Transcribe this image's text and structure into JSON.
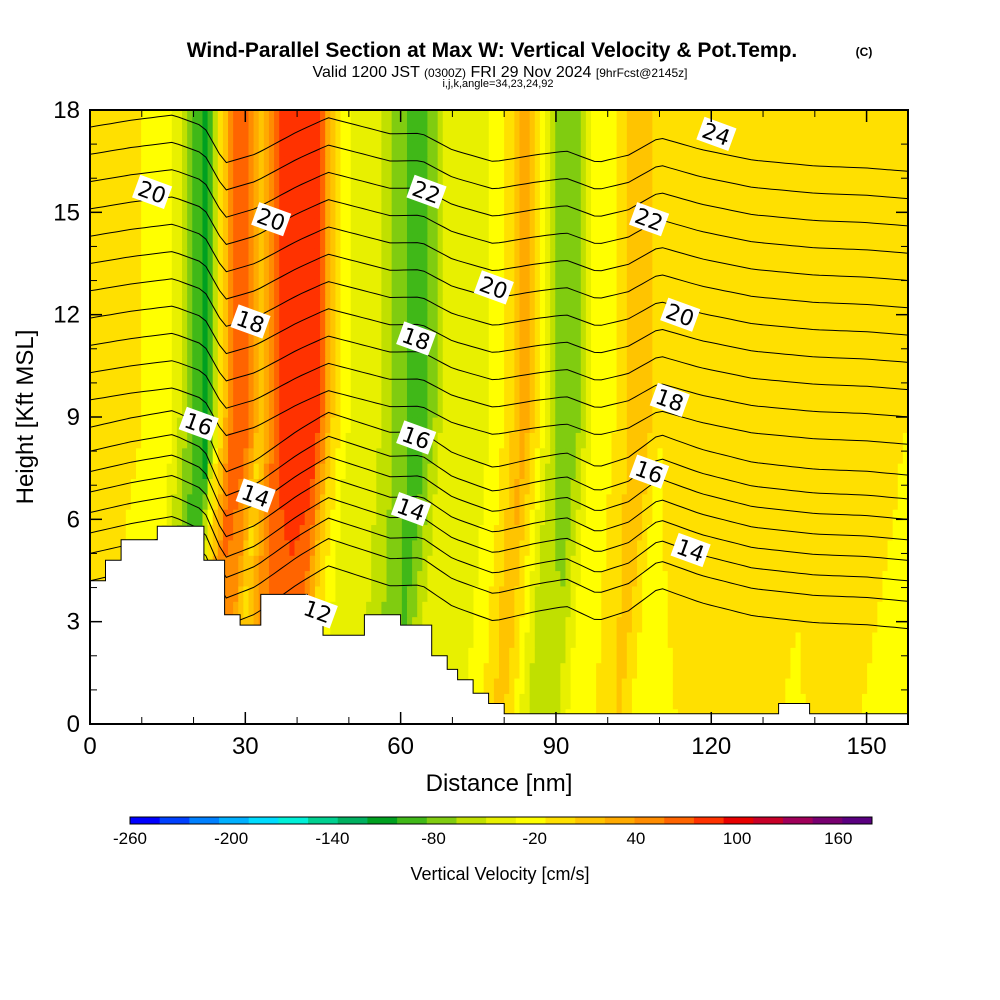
{
  "header": {
    "title": "Wind-Parallel Section at Max W: Vertical Velocity & Pot.Temp.",
    "copyright": "(C)",
    "valid_prefix": "Valid 1200 JST",
    "valid_utc": "(0300Z)",
    "valid_date": "FRI 29 Nov 2024",
    "forecast": "[9hrFcst@2145z]",
    "indices": "i,j,k,angle=34,23,24,92"
  },
  "chart_data": {
    "type": "heatmap",
    "xlabel": "Distance [nm]",
    "ylabel": "Height [Kft MSL]",
    "xlim": [
      0,
      158
    ],
    "ylim": [
      0,
      18
    ],
    "x_ticks": [
      0,
      30,
      60,
      90,
      120,
      150
    ],
    "y_ticks": [
      0,
      3,
      6,
      9,
      12,
      15,
      18
    ],
    "grid": false,
    "colorbar": {
      "label": "Vertical Velocity [cm/s]",
      "min": -260,
      "max": 180,
      "step": 20,
      "tick_values": [
        -260,
        -200,
        -140,
        -80,
        -20,
        40,
        100,
        160
      ],
      "tick_labels": [
        "-260",
        "-200",
        "-140",
        "-80",
        "-20",
        "40",
        "100",
        "160"
      ],
      "colors": [
        "#0000ff",
        "#0040ff",
        "#0080ff",
        "#00b0ff",
        "#00dcff",
        "#00f0d8",
        "#00d090",
        "#00b060",
        "#00a020",
        "#40b818",
        "#80cc10",
        "#c0e000",
        "#e8f000",
        "#ffff00",
        "#ffe000",
        "#ffc400",
        "#ffaa00",
        "#ff8c00",
        "#ff6400",
        "#ff3200",
        "#e80000",
        "#c80028",
        "#a0005a",
        "#780070",
        "#5a0080"
      ]
    },
    "velocity_profile": {
      "x": [
        0,
        5,
        10,
        16,
        20,
        23,
        25,
        28,
        31,
        33,
        36,
        38,
        41,
        44,
        47,
        50,
        55,
        60,
        64,
        68,
        72,
        76,
        80,
        84,
        87,
        90,
        94,
        97,
        100,
        104,
        107,
        110,
        115,
        120,
        125,
        130,
        135,
        140,
        145,
        150,
        155,
        158
      ],
      "w": [
        30,
        30,
        20,
        0,
        -60,
        -90,
        20,
        120,
        100,
        40,
        110,
        130,
        140,
        130,
        40,
        0,
        -10,
        -50,
        -80,
        -20,
        0,
        -10,
        20,
        70,
        20,
        -40,
        -50,
        0,
        10,
        40,
        60,
        20,
        25,
        30,
        40,
        30,
        35,
        25,
        30,
        40,
        25,
        20
      ]
    },
    "theta_contours": {
      "units": "C",
      "levels": [
        {
          "base": 4.2,
          "label": null
        },
        {
          "base": 5.0,
          "label": null
        },
        {
          "base": 5.6,
          "label": "12"
        },
        {
          "base": 6.2,
          "label": null
        },
        {
          "base": 6.8,
          "label": "14"
        },
        {
          "base": 7.4,
          "label": null
        },
        {
          "base": 8.0,
          "label": "16"
        },
        {
          "base": 8.7,
          "label": null
        },
        {
          "base": 9.5,
          "label": "18"
        },
        {
          "base": 10.3,
          "label": null
        },
        {
          "base": 11.1,
          "label": "20"
        },
        {
          "base": 11.9,
          "label": null
        },
        {
          "base": 12.7,
          "label": null
        },
        {
          "base": 13.5,
          "label": null
        },
        {
          "base": 14.3,
          "label": "22"
        },
        {
          "base": 15.1,
          "label": null
        },
        {
          "base": 15.9,
          "label": null
        },
        {
          "base": 16.7,
          "label": "24"
        },
        {
          "base": 17.5,
          "label": null
        }
      ],
      "inline_labels": [
        {
          "text": "20",
          "x": 12,
          "y": 15.6
        },
        {
          "text": "20",
          "x": 35,
          "y": 14.8
        },
        {
          "text": "18",
          "x": 31,
          "y": 11.8
        },
        {
          "text": "16",
          "x": 21,
          "y": 8.8
        },
        {
          "text": "14",
          "x": 32,
          "y": 6.7
        },
        {
          "text": "12",
          "x": 44,
          "y": 3.3
        },
        {
          "text": "22",
          "x": 65,
          "y": 15.6
        },
        {
          "text": "20",
          "x": 78,
          "y": 12.8
        },
        {
          "text": "18",
          "x": 63,
          "y": 11.3
        },
        {
          "text": "16",
          "x": 63,
          "y": 8.4
        },
        {
          "text": "14",
          "x": 62,
          "y": 6.3
        },
        {
          "text": "24",
          "x": 121,
          "y": 17.3
        },
        {
          "text": "22",
          "x": 108,
          "y": 14.8
        },
        {
          "text": "20",
          "x": 114,
          "y": 12.0
        },
        {
          "text": "18",
          "x": 112,
          "y": 9.5
        },
        {
          "text": "16",
          "x": 108,
          "y": 7.4
        },
        {
          "text": "14",
          "x": 116,
          "y": 5.1
        }
      ]
    },
    "terrain": {
      "x": [
        0,
        3,
        3,
        6,
        6,
        13,
        13,
        22,
        22,
        26,
        26,
        29,
        29,
        33,
        33,
        42,
        42,
        45,
        45,
        53,
        53,
        60,
        60,
        66,
        66,
        69,
        69,
        71,
        71,
        74,
        74,
        77,
        77,
        80,
        80,
        83,
        83,
        133,
        133,
        139,
        139,
        158
      ],
      "y": [
        4.2,
        4.2,
        4.8,
        4.8,
        5.4,
        5.4,
        5.8,
        5.8,
        4.8,
        4.8,
        3.2,
        3.2,
        2.9,
        2.9,
        3.8,
        3.8,
        3.2,
        3.2,
        2.6,
        2.6,
        3.2,
        3.2,
        2.9,
        2.9,
        2.0,
        2.0,
        1.6,
        1.6,
        1.3,
        1.3,
        0.9,
        0.9,
        0.6,
        0.6,
        0.3,
        0.3,
        0.3,
        0.3,
        0.6,
        0.6,
        0.3,
        0.3
      ]
    }
  }
}
